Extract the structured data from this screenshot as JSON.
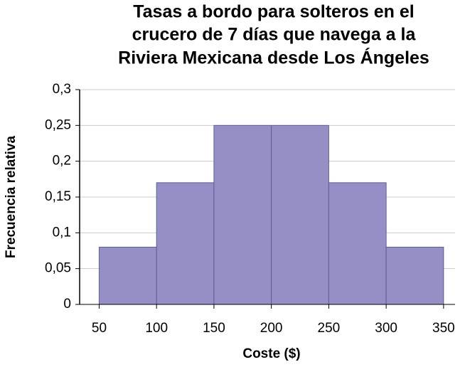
{
  "chart_data": {
    "type": "histogram",
    "title": [
      "Tasas a bordo para solteros en el",
      "crucero de 7 días que navega a la",
      "Riviera Mexicana desde Los Ángeles"
    ],
    "x_label": "Coste ($)",
    "y_label": "Frecuencia relativa",
    "bins": [
      50,
      100,
      150,
      200,
      250,
      300,
      350
    ],
    "values": [
      0.08,
      0.17,
      0.25,
      0.25,
      0.17,
      0.08
    ],
    "color": "#9490c6",
    "xlim": [
      33,
      360
    ],
    "xticks": [
      50,
      100,
      150,
      200,
      250,
      300,
      350
    ],
    "ylim": [
      0,
      0.3
    ],
    "yticks": [
      0,
      {
        "value": 0.05,
        "label": "0,05"
      },
      {
        "value": 0.1,
        "label": "0,1"
      },
      {
        "value": 0.15,
        "label": "0,15"
      },
      {
        "value": 0.2,
        "label": "0,2"
      },
      {
        "value": 0.25,
        "label": "0,25"
      },
      {
        "value": 0.3,
        "label": "0,3"
      }
    ],
    "grid": true
  }
}
